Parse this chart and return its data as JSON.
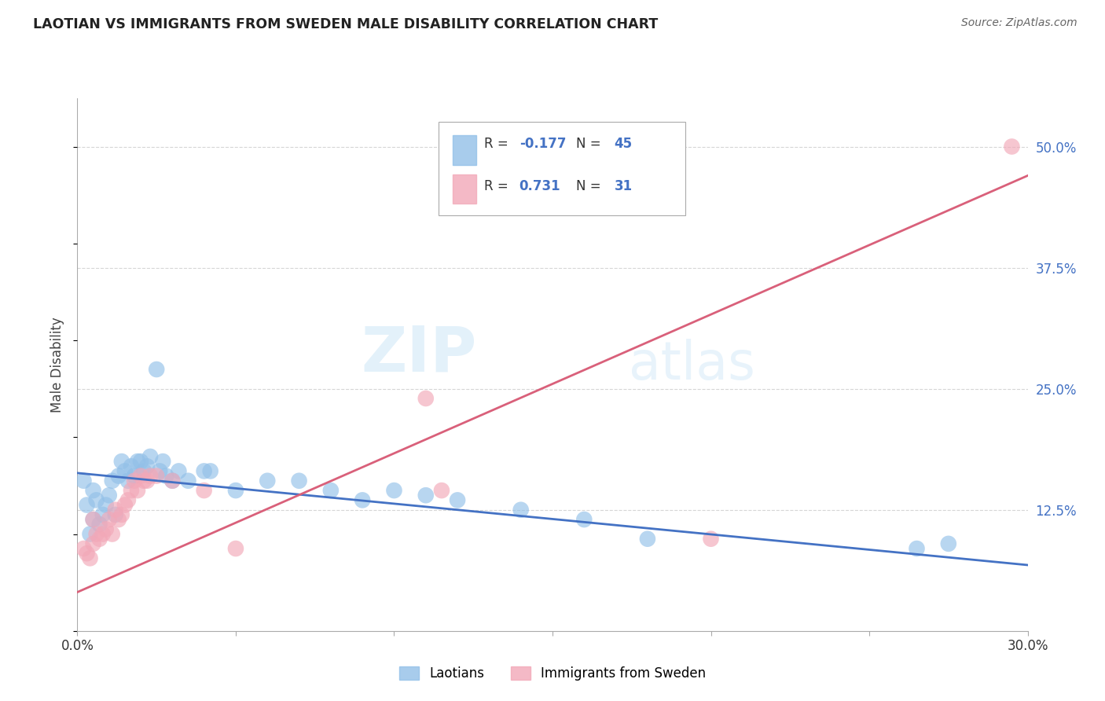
{
  "title": "LAOTIAN VS IMMIGRANTS FROM SWEDEN MALE DISABILITY CORRELATION CHART",
  "source": "Source: ZipAtlas.com",
  "ylabel": "Male Disability",
  "xlim": [
    0.0,
    0.3
  ],
  "ylim": [
    0.0,
    0.55
  ],
  "xticks": [
    0.0,
    0.05,
    0.1,
    0.15,
    0.2,
    0.25,
    0.3
  ],
  "xtick_labels": [
    "0.0%",
    "",
    "",
    "",
    "",
    "",
    "30.0%"
  ],
  "ytick_labels_right": [
    "12.5%",
    "25.0%",
    "37.5%",
    "50.0%"
  ],
  "ytick_values_right": [
    0.125,
    0.25,
    0.375,
    0.5
  ],
  "blue_color": "#92C0E8",
  "pink_color": "#F2A8B8",
  "blue_line_color": "#4472C4",
  "pink_line_color": "#D9607A",
  "laotian_points": [
    [
      0.002,
      0.155
    ],
    [
      0.003,
      0.13
    ],
    [
      0.004,
      0.1
    ],
    [
      0.005,
      0.145
    ],
    [
      0.005,
      0.115
    ],
    [
      0.006,
      0.135
    ],
    [
      0.007,
      0.11
    ],
    [
      0.008,
      0.12
    ],
    [
      0.009,
      0.13
    ],
    [
      0.01,
      0.14
    ],
    [
      0.011,
      0.155
    ],
    [
      0.012,
      0.12
    ],
    [
      0.013,
      0.16
    ],
    [
      0.014,
      0.175
    ],
    [
      0.015,
      0.165
    ],
    [
      0.016,
      0.155
    ],
    [
      0.017,
      0.17
    ],
    [
      0.018,
      0.16
    ],
    [
      0.019,
      0.175
    ],
    [
      0.02,
      0.175
    ],
    [
      0.021,
      0.165
    ],
    [
      0.022,
      0.17
    ],
    [
      0.023,
      0.18
    ],
    [
      0.025,
      0.27
    ],
    [
      0.026,
      0.165
    ],
    [
      0.027,
      0.175
    ],
    [
      0.028,
      0.16
    ],
    [
      0.03,
      0.155
    ],
    [
      0.032,
      0.165
    ],
    [
      0.035,
      0.155
    ],
    [
      0.04,
      0.165
    ],
    [
      0.042,
      0.165
    ],
    [
      0.05,
      0.145
    ],
    [
      0.06,
      0.155
    ],
    [
      0.07,
      0.155
    ],
    [
      0.08,
      0.145
    ],
    [
      0.09,
      0.135
    ],
    [
      0.1,
      0.145
    ],
    [
      0.11,
      0.14
    ],
    [
      0.12,
      0.135
    ],
    [
      0.14,
      0.125
    ],
    [
      0.16,
      0.115
    ],
    [
      0.18,
      0.095
    ],
    [
      0.265,
      0.085
    ],
    [
      0.275,
      0.09
    ]
  ],
  "sweden_points": [
    [
      0.002,
      0.085
    ],
    [
      0.003,
      0.08
    ],
    [
      0.004,
      0.075
    ],
    [
      0.005,
      0.09
    ],
    [
      0.005,
      0.115
    ],
    [
      0.006,
      0.1
    ],
    [
      0.007,
      0.095
    ],
    [
      0.008,
      0.1
    ],
    [
      0.009,
      0.105
    ],
    [
      0.01,
      0.115
    ],
    [
      0.011,
      0.1
    ],
    [
      0.012,
      0.125
    ],
    [
      0.013,
      0.115
    ],
    [
      0.014,
      0.12
    ],
    [
      0.015,
      0.13
    ],
    [
      0.016,
      0.135
    ],
    [
      0.017,
      0.145
    ],
    [
      0.018,
      0.155
    ],
    [
      0.019,
      0.145
    ],
    [
      0.02,
      0.16
    ],
    [
      0.021,
      0.155
    ],
    [
      0.022,
      0.155
    ],
    [
      0.023,
      0.16
    ],
    [
      0.025,
      0.16
    ],
    [
      0.03,
      0.155
    ],
    [
      0.04,
      0.145
    ],
    [
      0.05,
      0.085
    ],
    [
      0.11,
      0.24
    ],
    [
      0.115,
      0.145
    ],
    [
      0.2,
      0.095
    ],
    [
      0.295,
      0.5
    ]
  ],
  "background_color": "#FFFFFF",
  "grid_color": "#CCCCCC",
  "blue_trend": [
    0.0,
    0.3,
    0.163,
    0.068
  ],
  "pink_trend": [
    0.0,
    0.3,
    0.04,
    0.47
  ]
}
